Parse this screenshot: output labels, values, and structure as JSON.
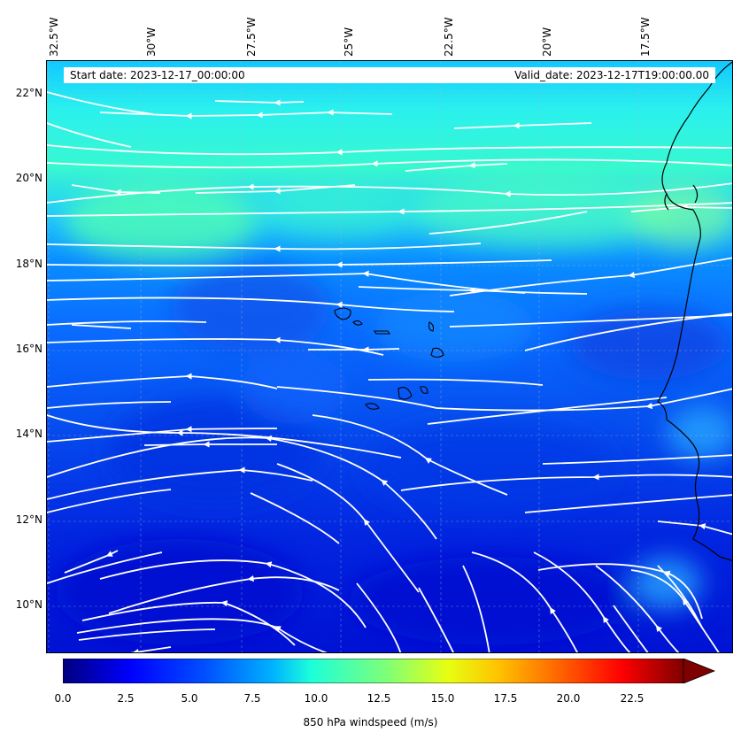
{
  "map": {
    "start_label": "Start date: 2023-12-17_00:00:00",
    "valid_label": "Valid_date: 2023-12-17T19:00:00.00",
    "longitude_labels": [
      "32.5°W",
      "30°W",
      "27.5°W",
      "25°W",
      "22.5°W",
      "20°W",
      "17.5°W"
    ],
    "latitude_labels": [
      "22°N",
      "20°N",
      "18°N",
      "16°N",
      "14°N",
      "12°N",
      "10°N"
    ],
    "extent": {
      "lon_min": -32.6,
      "lon_max": -15.3,
      "lat_min": 8.9,
      "lat_max": 22.8
    },
    "flow_direction": "east-to-west (northeasterly trade winds)",
    "land": [
      "West African coast (Mauritania, Senegal, Gambia)",
      "Cape Verde islands"
    ],
    "colors": {
      "low": "#0000c8",
      "mid": "#00b4ff",
      "high": "#28ffc8",
      "streamline": "#ffffff",
      "coast": "#000000"
    }
  },
  "colorbar": {
    "label": "850 hPa windspeed (m/s)",
    "ticks": [
      "0.0",
      "2.5",
      "5.0",
      "7.5",
      "10.0",
      "12.5",
      "15.0",
      "17.5",
      "20.0",
      "22.5"
    ],
    "min": 0,
    "max": 25,
    "colormap": "jet",
    "extend": "max"
  }
}
